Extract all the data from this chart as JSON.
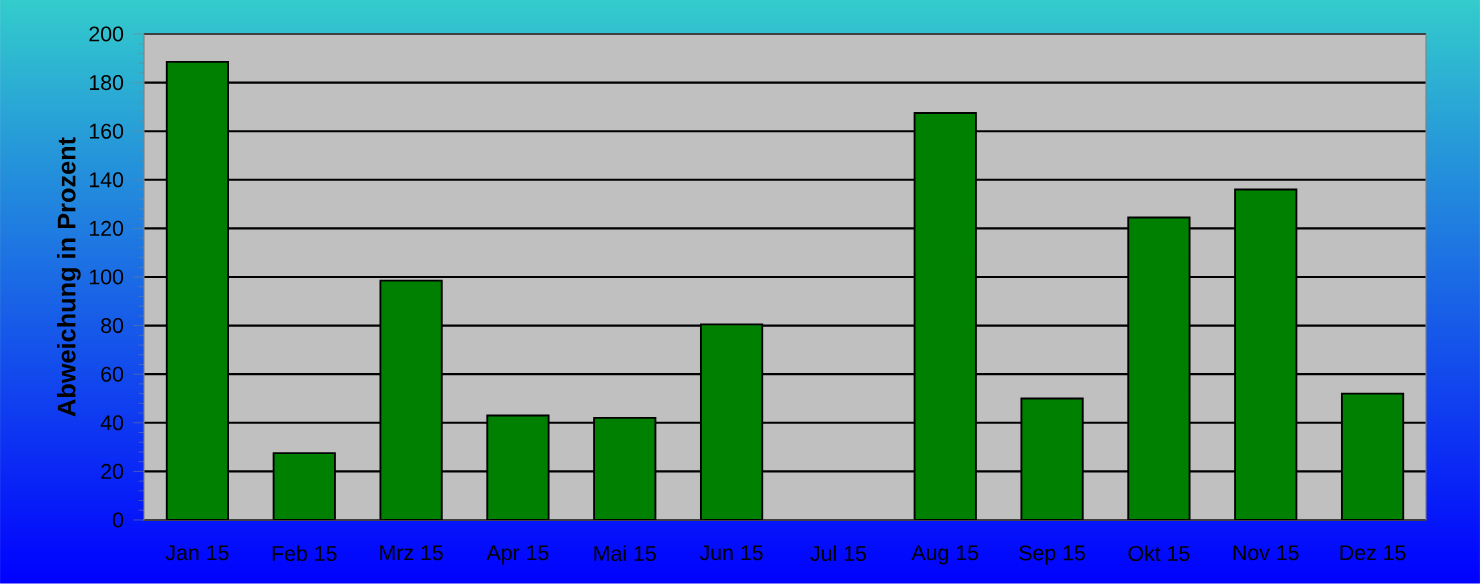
{
  "chart_data": {
    "type": "bar",
    "ylabel": "Abweichung in Prozent",
    "categories": [
      "Jan 15",
      "Feb 15",
      "Mrz 15",
      "Apr 15",
      "Mai 15",
      "Jun 15",
      "Jul 15",
      "Aug 15",
      "Sep 15",
      "Okt 15",
      "Nov 15",
      "Dez 15"
    ],
    "values": [
      188.5,
      27.5,
      98.5,
      43,
      42,
      80.5,
      null,
      167.5,
      50,
      124.5,
      136,
      52
    ],
    "color": "#008000",
    "ylim": [
      0,
      200
    ],
    "yticks": [
      0,
      20,
      40,
      60,
      80,
      100,
      120,
      140,
      160,
      180,
      200
    ],
    "grid": "y"
  }
}
